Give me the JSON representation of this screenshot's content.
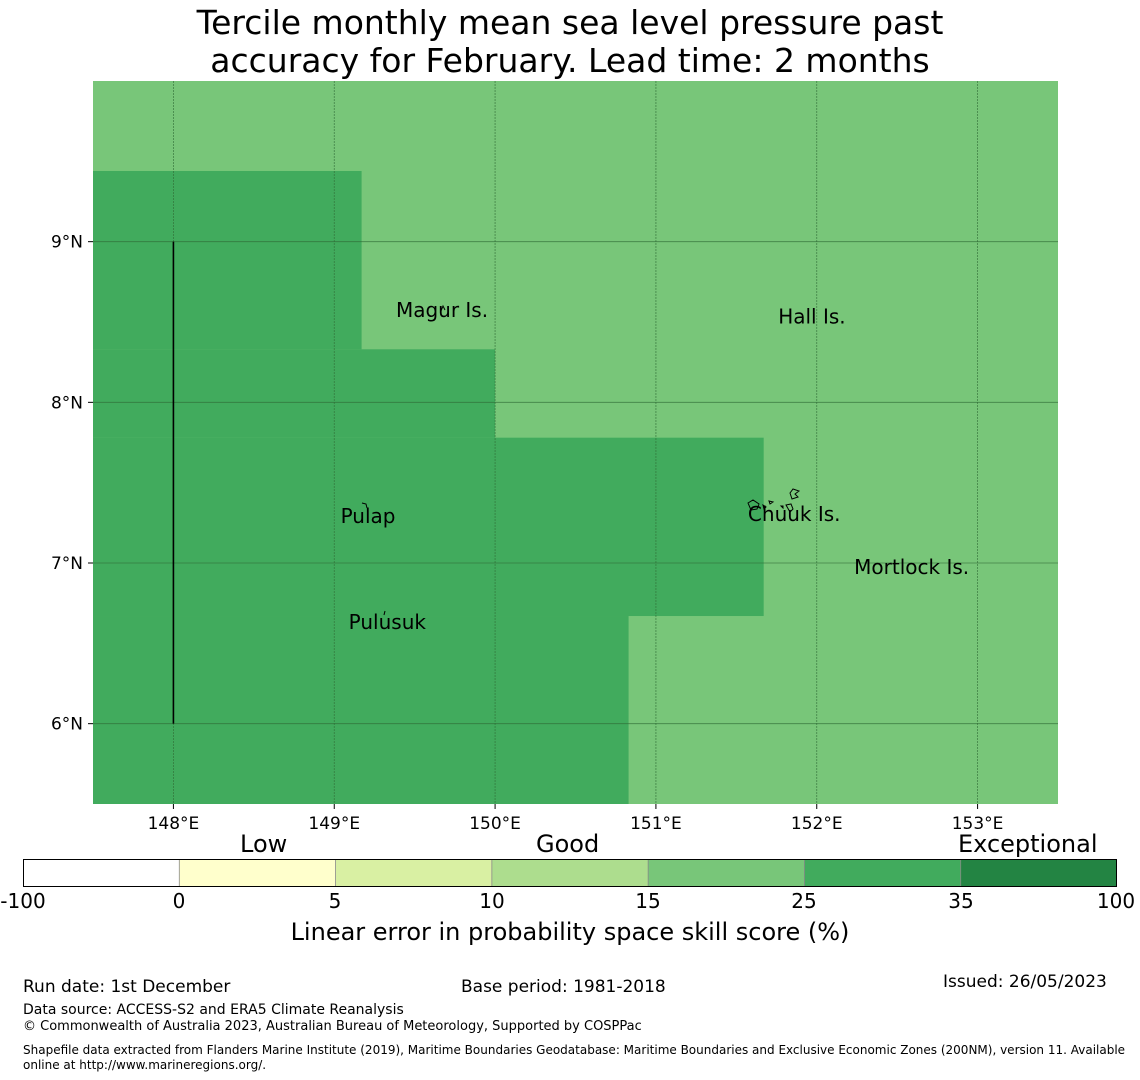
{
  "title_line1": "Tercile monthly mean sea level pressure past",
  "title_line2": "accuracy for February. Lead time: 2 months",
  "map": {
    "lon_range": [
      147.5,
      153.5
    ],
    "lat_range": [
      5.5,
      10.0
    ],
    "lon_ticks": [
      148,
      149,
      150,
      151,
      152,
      153
    ],
    "lon_tick_labels": [
      "148°E",
      "149°E",
      "150°E",
      "151°E",
      "152°E",
      "153°E"
    ],
    "lat_ticks": [
      6,
      7,
      8,
      9
    ],
    "lat_tick_labels": [
      "6°N",
      "7°N",
      "8°N",
      "9°N"
    ],
    "background_category": "15-25",
    "colors": {
      "15-25": "#78c679",
      "25-35": "#41ab5d"
    },
    "high_skill_regions": [
      {
        "category": "25-35",
        "lon": [
          147.5,
          149.17
        ],
        "lat": [
          8.33,
          9.44
        ]
      },
      {
        "category": "25-35",
        "lon": [
          147.5,
          150.0
        ],
        "lat": [
          7.78,
          8.33
        ]
      },
      {
        "category": "25-35",
        "lon": [
          147.5,
          151.67
        ],
        "lat": [
          6.67,
          7.78
        ]
      },
      {
        "category": "25-35",
        "lon": [
          147.5,
          150.83
        ],
        "lat": [
          5.5,
          6.67
        ]
      }
    ],
    "boundary_line": {
      "lon": 148.0,
      "lat": [
        6.0,
        9.0
      ]
    },
    "places": [
      {
        "name": "Magur Is.",
        "lon": 149.67,
        "lat": 8.53
      },
      {
        "name": "Hall Is.",
        "lon": 151.97,
        "lat": 8.49
      },
      {
        "name": "Pulap",
        "lon": 149.21,
        "lat": 7.25
      },
      {
        "name": "Chuuk Is.",
        "lon": 151.86,
        "lat": 7.26
      },
      {
        "name": "Mortlock Is.",
        "lon": 152.59,
        "lat": 6.93
      },
      {
        "name": "Pulusuk",
        "lon": 149.33,
        "lat": 6.59
      }
    ]
  },
  "colorbar": {
    "category_words": [
      "Low",
      "Good",
      "Exceptional"
    ],
    "tick_labels": [
      "-100",
      "0",
      "5",
      "10",
      "15",
      "25",
      "35",
      "100"
    ],
    "colors": [
      "#ffffff",
      "#ffffcc",
      "#d9f0a3",
      "#addd8e",
      "#78c679",
      "#41ab5d",
      "#238443"
    ],
    "label": "Linear error in probability space skill score (%)"
  },
  "footer": {
    "run_date": "Run date: 1st December",
    "base_period": "Base period: 1981-2018",
    "issued": "Issued: 26/05/2023",
    "data_source": "Data source: ACCESS-S2 and ERA5 Climate Reanalysis",
    "copyright": "© Commonwealth of Australia 2023, Australian Bureau of Meteorology, Supported by COSPPac",
    "shapefile_line1": "Shapefile data extracted from Flanders Marine Institute (2019), Maritime Boundaries Geodatabase: Maritime Boundaries and Exclusive Economic Zones (200NM), version 11. Available",
    "shapefile_line2": "online at http://www.marineregions.org/."
  }
}
